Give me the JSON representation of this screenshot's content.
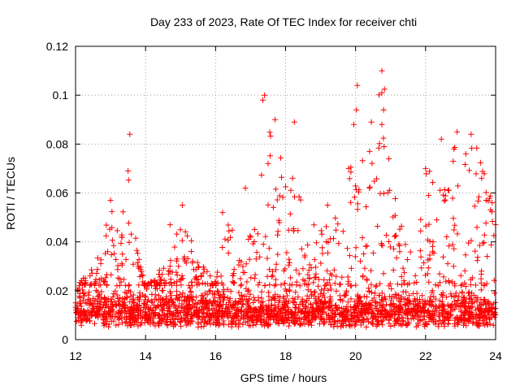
{
  "chart_data": {
    "type": "scatter",
    "title": "Day 233 of 2023, Rate Of TEC Index for receiver chti",
    "xlabel": "GPS time / hours",
    "ylabel": "ROTI / TECUs",
    "xlim": [
      12,
      24
    ],
    "ylim": [
      0,
      0.12
    ],
    "xticks": [
      12,
      14,
      16,
      18,
      20,
      22,
      24
    ],
    "xtick_labels": [
      "12",
      "14",
      "16",
      "18",
      "20",
      "22",
      "24"
    ],
    "yticks": [
      0,
      0.02,
      0.04,
      0.06,
      0.08,
      0.1,
      0.12
    ],
    "ytick_labels": [
      "0",
      "0.02",
      "0.04",
      "0.06",
      "0.08",
      "0.1",
      "0.12"
    ],
    "grid": true,
    "marker": "+",
    "marker_color": "#ff0000",
    "baseline": {
      "description": "dense ROTI background noise band",
      "range": [
        0.005,
        0.022
      ],
      "points_per_hour": 220,
      "seed": 233
    },
    "activity_envelope": {
      "x": [
        12.0,
        12.4,
        12.7,
        13.0,
        13.2,
        13.5,
        13.7,
        14.0,
        14.5,
        14.8,
        15.0,
        15.5,
        16.0,
        16.3,
        16.8,
        17.2,
        17.5,
        17.8,
        18.2,
        18.6,
        19.0,
        19.3,
        19.7,
        20.0,
        20.3,
        20.5,
        20.8,
        21.2,
        21.6,
        22.0,
        22.3,
        22.6,
        22.9,
        23.2,
        23.5,
        23.8,
        24.0
      ],
      "max_roti": [
        0.021,
        0.029,
        0.035,
        0.057,
        0.045,
        0.069,
        0.043,
        0.022,
        0.03,
        0.043,
        0.055,
        0.033,
        0.024,
        0.052,
        0.033,
        0.062,
        0.098,
        0.072,
        0.088,
        0.045,
        0.052,
        0.055,
        0.048,
        0.104,
        0.06,
        0.09,
        0.108,
        0.05,
        0.038,
        0.07,
        0.082,
        0.068,
        0.084,
        0.083,
        0.079,
        0.065,
        0.055
      ]
    },
    "annotated_peaks": [
      {
        "x": 12.1,
        "y": 0.021
      },
      {
        "x": 13.0,
        "y": 0.057
      },
      {
        "x": 13.5,
        "y": 0.069
      },
      {
        "x": 13.55,
        "y": 0.084
      },
      {
        "x": 14.7,
        "y": 0.047
      },
      {
        "x": 15.05,
        "y": 0.055
      },
      {
        "x": 16.2,
        "y": 0.052
      },
      {
        "x": 16.85,
        "y": 0.062
      },
      {
        "x": 17.4,
        "y": 0.1
      },
      {
        "x": 17.35,
        "y": 0.098
      },
      {
        "x": 17.5,
        "y": 0.072
      },
      {
        "x": 17.7,
        "y": 0.09
      },
      {
        "x": 18.25,
        "y": 0.089
      },
      {
        "x": 18.2,
        "y": 0.066
      },
      {
        "x": 19.2,
        "y": 0.055
      },
      {
        "x": 19.8,
        "y": 0.07
      },
      {
        "x": 19.95,
        "y": 0.088
      },
      {
        "x": 20.05,
        "y": 0.104
      },
      {
        "x": 20.45,
        "y": 0.089
      },
      {
        "x": 20.4,
        "y": 0.077
      },
      {
        "x": 20.75,
        "y": 0.11
      },
      {
        "x": 20.75,
        "y": 0.101
      },
      {
        "x": 20.8,
        "y": 0.094
      },
      {
        "x": 20.75,
        "y": 0.088
      },
      {
        "x": 20.95,
        "y": 0.074
      },
      {
        "x": 22.0,
        "y": 0.07
      },
      {
        "x": 22.45,
        "y": 0.082
      },
      {
        "x": 22.9,
        "y": 0.085
      },
      {
        "x": 23.3,
        "y": 0.084
      },
      {
        "x": 23.15,
        "y": 0.076
      },
      {
        "x": 23.6,
        "y": 0.066
      },
      {
        "x": 23.9,
        "y": 0.056
      }
    ]
  }
}
